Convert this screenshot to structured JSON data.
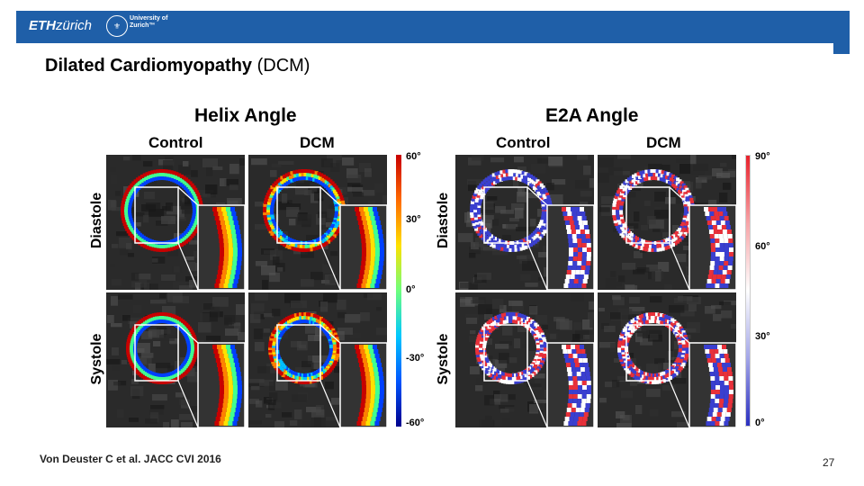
{
  "header": {
    "eth_logo_bold": "ETH",
    "eth_logo_rest": "zürich",
    "uzh_line1": "University of",
    "uzh_line2": "Zurich™"
  },
  "slide": {
    "title_bold": "Dilated Cardiomyopathy",
    "title_rest": " (DCM)",
    "citation": "Von Deuster C et al. JACC CVI 2016",
    "page_number": "27"
  },
  "helix": {
    "title": "Helix Angle",
    "col_control": "Control",
    "col_dcm": "DCM",
    "row_diastole": "Diastole",
    "row_systole": "Systole",
    "colorbar_ticks": [
      "60°",
      "30°",
      "0°",
      "-30°",
      "-60°"
    ],
    "colorbar_colors": [
      "#c80000",
      "#ff6a00",
      "#ffe100",
      "#6dff7d",
      "#00c8ff",
      "#0055ff",
      "#00008c"
    ]
  },
  "e2a": {
    "title": "E2A Angle",
    "col_control": "Control",
    "col_dcm": "DCM",
    "row_diastole": "Diastole",
    "row_systole": "Systole",
    "colorbar_ticks": [
      "90°",
      "60°",
      "30°",
      "0°"
    ],
    "colorbar_colors": [
      "#e8202a",
      "#f7a5a8",
      "#ffffff",
      "#a3a6e8",
      "#2a2fc0"
    ]
  }
}
